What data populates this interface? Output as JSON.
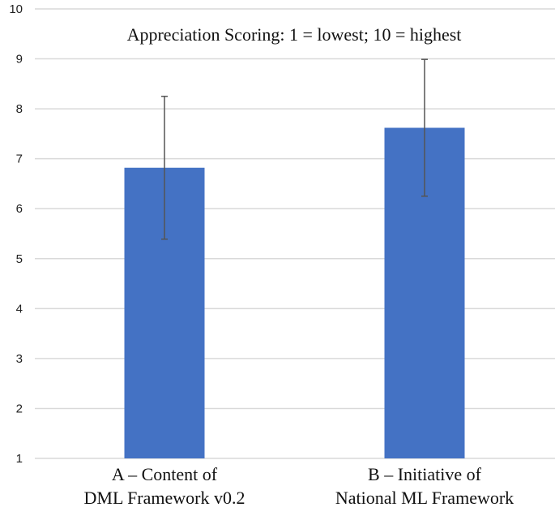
{
  "chart_data": {
    "type": "bar",
    "title": "Appreciation Scoring: 1 = lowest; 10 = highest",
    "categories": [
      [
        "A – Content of",
        "DML Framework v0.2"
      ],
      [
        "B – Initiative of",
        "National ML Framework"
      ]
    ],
    "values": [
      6.82,
      7.62
    ],
    "error": [
      1.43,
      1.37
    ],
    "xlabel": "",
    "ylabel": "",
    "ylim": [
      1,
      10
    ],
    "yticks": [
      1,
      2,
      3,
      4,
      5,
      6,
      7,
      8,
      9,
      10
    ],
    "grid": true,
    "colors": {
      "bar": "#4472C4",
      "error": "#555555",
      "grid": "#d9d9d9"
    }
  }
}
